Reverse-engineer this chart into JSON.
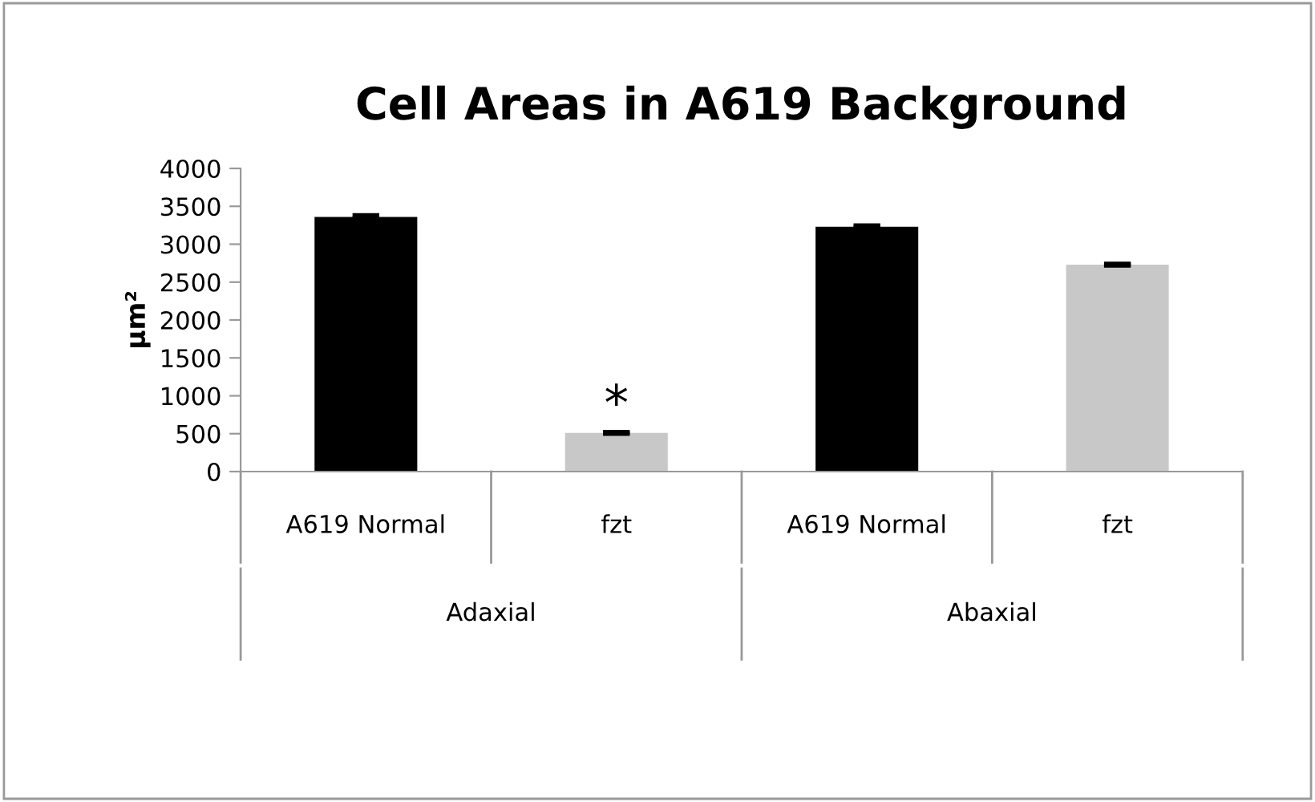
{
  "chart_data": {
    "type": "bar",
    "title": "Cell Areas in A619 Background",
    "ylabel": "µm²",
    "categories": [
      "A619 Normal",
      "fzt",
      "A619 Normal",
      "fzt"
    ],
    "values": [
      3360,
      510,
      3230,
      2730
    ],
    "colors": [
      "#000000",
      "#c8c8c8",
      "#000000",
      "#c8c8c8"
    ],
    "errors": [
      20,
      10,
      15,
      10
    ],
    "ylim": [
      0,
      4000
    ],
    "yticks": [
      0,
      500,
      1000,
      1500,
      2000,
      2500,
      3000,
      3500,
      4000
    ],
    "annotations": [
      "Adaxial",
      "Abaxial",
      "*"
    ],
    "grid": false,
    "legend": false
  }
}
